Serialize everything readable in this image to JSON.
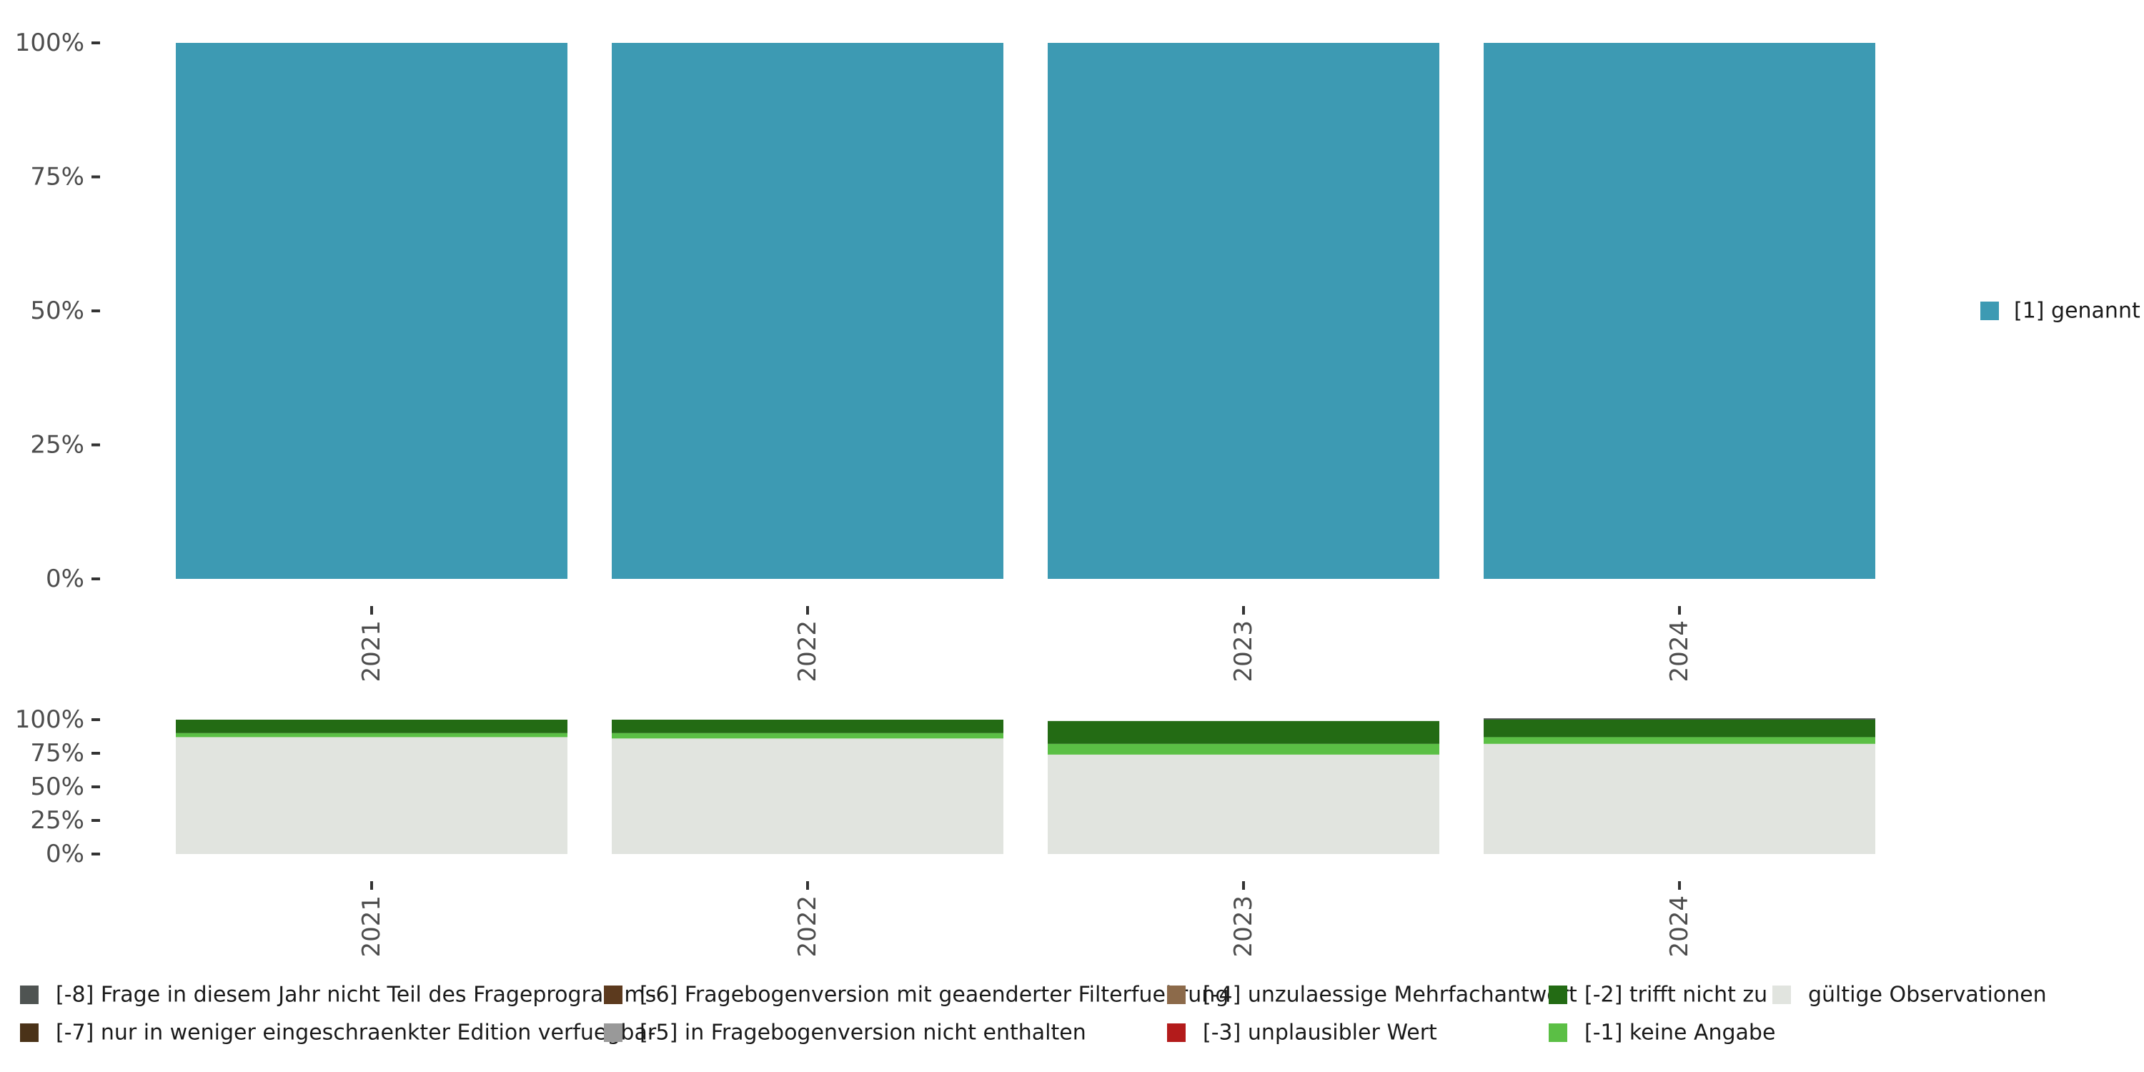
{
  "chart_data": [
    {
      "type": "bar",
      "stacked": true,
      "categories": [
        "2021",
        "2022",
        "2023",
        "2024"
      ],
      "y_ticks": [
        "0%",
        "25%",
        "50%",
        "75%",
        "100%"
      ],
      "ylim": [
        0,
        100
      ],
      "grid": false,
      "legend_position": "right",
      "series": [
        {
          "name": "[1] genannt",
          "color": "#3d9ab3",
          "values": [
            100,
            100,
            100,
            100
          ]
        }
      ]
    },
    {
      "type": "bar",
      "stacked": true,
      "categories": [
        "2021",
        "2022",
        "2023",
        "2024"
      ],
      "y_ticks": [
        "0%",
        "25%",
        "50%",
        "75%",
        "100%"
      ],
      "ylim": [
        0,
        100
      ],
      "grid": false,
      "legend_position": "bottom",
      "series": [
        {
          "name": "gültige Observationen",
          "color": "#e1e4df",
          "values": [
            87,
            86,
            74,
            82
          ]
        },
        {
          "name": "[-1] keine Angabe",
          "color": "#5bbf45",
          "values": [
            3,
            4,
            8,
            5
          ]
        },
        {
          "name": "[-2] trifft nicht zu",
          "color": "#236b14",
          "values": [
            10,
            10,
            17,
            13
          ]
        },
        {
          "name": "[-3] unplausibler Wert",
          "color": "#b31b1b",
          "values": [
            0,
            0,
            0,
            0
          ]
        },
        {
          "name": "[-4] unzulaessige Mehrfachantwort",
          "color": "#8c6a4a",
          "values": [
            0,
            0,
            0,
            0
          ]
        },
        {
          "name": "[-5] in Fragebogenversion nicht enthalten",
          "color": "#999999",
          "values": [
            0,
            0,
            0,
            0
          ]
        },
        {
          "name": "[-6] Fragebogenversion mit geaenderter Filterfuehrung",
          "color": "#5c3a1e",
          "values": [
            0,
            0,
            0,
            0
          ]
        },
        {
          "name": "[-7] nur in weniger eingeschraenkter Edition verfuegbar",
          "color": "#4a3218",
          "values": [
            0,
            0,
            0,
            0
          ]
        },
        {
          "name": "[-8] Frage in diesem Jahr nicht Teil des Frageprogramms",
          "color": "#4f5452",
          "values": [
            0,
            0,
            0,
            1
          ]
        }
      ]
    }
  ]
}
